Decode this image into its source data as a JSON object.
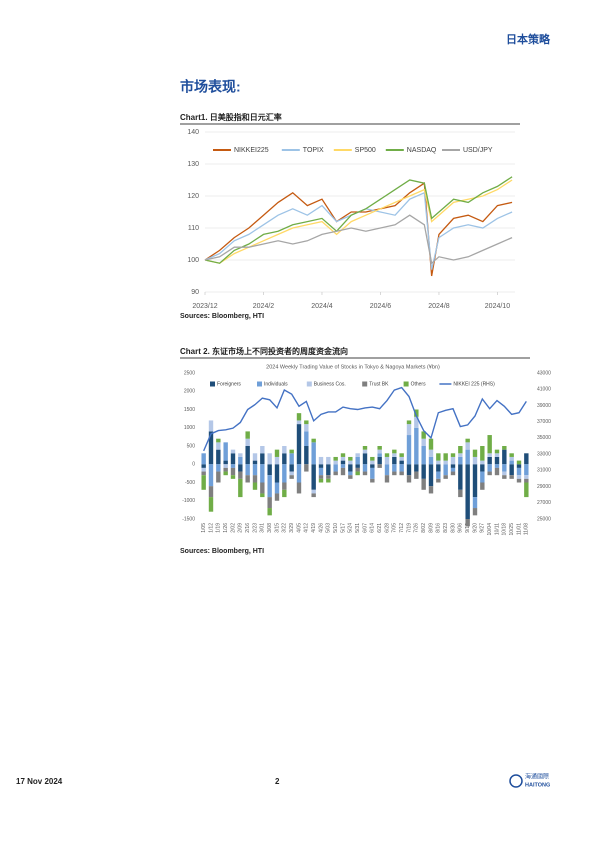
{
  "header": {
    "section": "日本策略"
  },
  "title": "市场表现:",
  "chart_data": [
    {
      "type": "line",
      "title": "Chart1.  日美股指和日元汇率",
      "source": "Sources: Bloomberg, HTI",
      "x": [
        0,
        0.5,
        1,
        1.5,
        2,
        2.5,
        3,
        3.5,
        4,
        4.5,
        5,
        5.5,
        6,
        6.5,
        7,
        7.5,
        7.75,
        8,
        8.5,
        9,
        9.5,
        10,
        10.5
      ],
      "xlim": [
        0,
        10.6
      ],
      "xticks": [
        {
          "value": 0,
          "label": "2023/12"
        },
        {
          "value": 2,
          "label": "2024/2"
        },
        {
          "value": 4,
          "label": "2024/4"
        },
        {
          "value": 6,
          "label": "2024/6"
        },
        {
          "value": 8,
          "label": "2024/8"
        },
        {
          "value": 10,
          "label": "2024/10"
        }
      ],
      "ylim": [
        90,
        140
      ],
      "yticks": [
        90,
        100,
        110,
        120,
        130,
        140
      ],
      "grid": true,
      "series": [
        {
          "name": "NIKKEI225",
          "color": "#c55a11",
          "values": [
            100,
            103,
            107,
            110,
            114,
            118,
            121,
            117,
            119,
            112,
            115,
            115,
            116,
            117,
            121,
            124,
            95,
            108,
            113,
            114,
            112,
            117,
            118
          ]
        },
        {
          "name": "TOPIX",
          "color": "#9dc3e6",
          "values": [
            100,
            102,
            106,
            108,
            111,
            114,
            116,
            114,
            117,
            112,
            114,
            116,
            115,
            114,
            119,
            121,
            97,
            107,
            110,
            111,
            110,
            113,
            115
          ]
        },
        {
          "name": "SP500",
          "color": "#ffd966",
          "values": [
            100,
            99,
            102,
            104,
            106,
            108,
            110,
            111,
            112,
            108,
            112,
            114,
            116,
            118,
            120,
            122,
            112,
            114,
            118,
            119,
            120,
            122,
            125
          ]
        },
        {
          "name": "NASDAQ",
          "color": "#70ad47",
          "values": [
            100,
            99,
            103,
            105,
            108,
            109,
            111,
            112,
            113,
            109,
            114,
            116,
            119,
            122,
            125,
            124,
            113,
            115,
            119,
            118,
            121,
            123,
            126
          ]
        },
        {
          "name": "USD/JPY",
          "color": "#a6a6a6",
          "values": [
            100,
            101,
            104,
            104,
            105,
            106,
            105,
            106,
            108,
            109,
            110,
            109,
            110,
            111,
            114,
            111,
            99,
            101,
            100,
            101,
            103,
            105,
            107
          ]
        }
      ]
    },
    {
      "type": "bar",
      "stacked": true,
      "title": "Chart 2. 东证市场上不同投资者的周度资金流向",
      "subtitle": "2024 Weekly Trading Value of Stocks in Tokyo & Nagoya Markets (¥bn)",
      "source": "Sources: Bloomberg, HTI",
      "categories": [
        "1/05",
        "1/12",
        "1/19",
        "1/26",
        "2/02",
        "2/09",
        "2/16",
        "2/23",
        "3/01",
        "3/08",
        "3/15",
        "3/22",
        "3/29",
        "4/05",
        "4/12",
        "4/19",
        "4/26",
        "5/03",
        "5/10",
        "5/17",
        "5/24",
        "5/31",
        "6/07",
        "6/14",
        "6/21",
        "6/28",
        "7/05",
        "7/12",
        "7/19",
        "7/26",
        "8/02",
        "8/09",
        "8/16",
        "8/23",
        "8/30",
        "9/06",
        "9/13",
        "9/20",
        "9/27",
        "10/04",
        "10/11",
        "10/18",
        "10/25",
        "11/01",
        "11/08"
      ],
      "ylim": [
        -1500,
        2500
      ],
      "yticks": [
        -1500,
        -1000,
        -500,
        0,
        500,
        1000,
        1500,
        2000,
        2500
      ],
      "y2lim": [
        25000,
        43000
      ],
      "y2ticks": [
        25000,
        27000,
        29000,
        31000,
        33000,
        35000,
        37000,
        39000,
        41000,
        43000
      ],
      "grid": false,
      "series": [
        {
          "name": "Foreigners",
          "color": "#1f4e79",
          "values": [
            -100,
            900,
            400,
            100,
            300,
            -200,
            500,
            100,
            300,
            -300,
            -500,
            300,
            -200,
            1100,
            500,
            -700,
            -100,
            -300,
            0,
            100,
            -200,
            -100,
            300,
            -100,
            200,
            0,
            200,
            100,
            -300,
            -200,
            -400,
            -600,
            -200,
            0,
            -100,
            -700,
            -1500,
            -900,
            -200,
            200,
            200,
            400,
            -300,
            -100,
            300
          ]
        },
        {
          "name": "Individuals",
          "color": "#6f9fd8",
          "values": [
            300,
            -600,
            -200,
            500,
            -100,
            200,
            -300,
            -300,
            -500,
            -600,
            -300,
            -500,
            300,
            -500,
            400,
            600,
            -200,
            0,
            -200,
            -100,
            -100,
            200,
            -200,
            -300,
            100,
            -300,
            -200,
            -200,
            800,
            1000,
            500,
            200,
            -200,
            -300,
            -100,
            200,
            400,
            -300,
            -300,
            -200,
            -100,
            -200,
            100,
            -200,
            -300
          ]
        },
        {
          "name": "Business Cos.",
          "color": "#b4c7e7",
          "values": [
            -100,
            300,
            200,
            -100,
            100,
            100,
            200,
            200,
            200,
            300,
            200,
            200,
            -100,
            100,
            200,
            -100,
            200,
            200,
            100,
            100,
            100,
            100,
            100,
            100,
            100,
            200,
            100,
            100,
            300,
            300,
            200,
            200,
            100,
            100,
            200,
            100,
            200,
            200,
            100,
            100,
            100,
            -100,
            100,
            -100,
            -100
          ]
        },
        {
          "name": "Trust BK",
          "color": "#7f7f7f",
          "values": [
            -100,
            -300,
            -300,
            -100,
            -200,
            -200,
            -200,
            -200,
            -300,
            -300,
            -200,
            -200,
            -100,
            -300,
            -200,
            -100,
            -100,
            -100,
            -100,
            -200,
            -100,
            -100,
            -100,
            -100,
            -100,
            -200,
            -100,
            -100,
            -200,
            -200,
            -300,
            -200,
            -100,
            -100,
            -100,
            -200,
            -200,
            -200,
            -200,
            -100,
            -200,
            -100,
            -100,
            -100,
            -100
          ]
        },
        {
          "name": "Others",
          "color": "#70ad47",
          "values": [
            -400,
            -400,
            100,
            -100,
            -100,
            -500,
            200,
            -200,
            -100,
            -200,
            200,
            -200,
            100,
            200,
            100,
            100,
            -100,
            -100,
            100,
            100,
            100,
            -100,
            100,
            100,
            100,
            100,
            100,
            100,
            100,
            200,
            200,
            300,
            200,
            200,
            100,
            200,
            100,
            200,
            400,
            500,
            100,
            100,
            100,
            100,
            -400
          ]
        },
        {
          "name": "NIKKEI 225 (RHS)",
          "color": "#4472c4",
          "axis": "y2",
          "values": [
            33400,
            35500,
            35900,
            36000,
            36200,
            36900,
            38500,
            39100,
            39900,
            39700,
            38700,
            40900,
            40400,
            38900,
            39500,
            37100,
            37900,
            38200,
            38200,
            38800,
            38600,
            38500,
            38700,
            38800,
            38600,
            39600,
            40900,
            41200,
            40100,
            37700,
            35900,
            35000,
            38100,
            38400,
            38600,
            36400,
            36600,
            37700,
            39800,
            38600,
            39600,
            38900,
            37900,
            38100,
            39500
          ]
        }
      ]
    }
  ],
  "footer": {
    "date": "17 Nov 2024",
    "page": "2",
    "logo": "海通國際",
    "logo_sub": "HAITONG"
  }
}
